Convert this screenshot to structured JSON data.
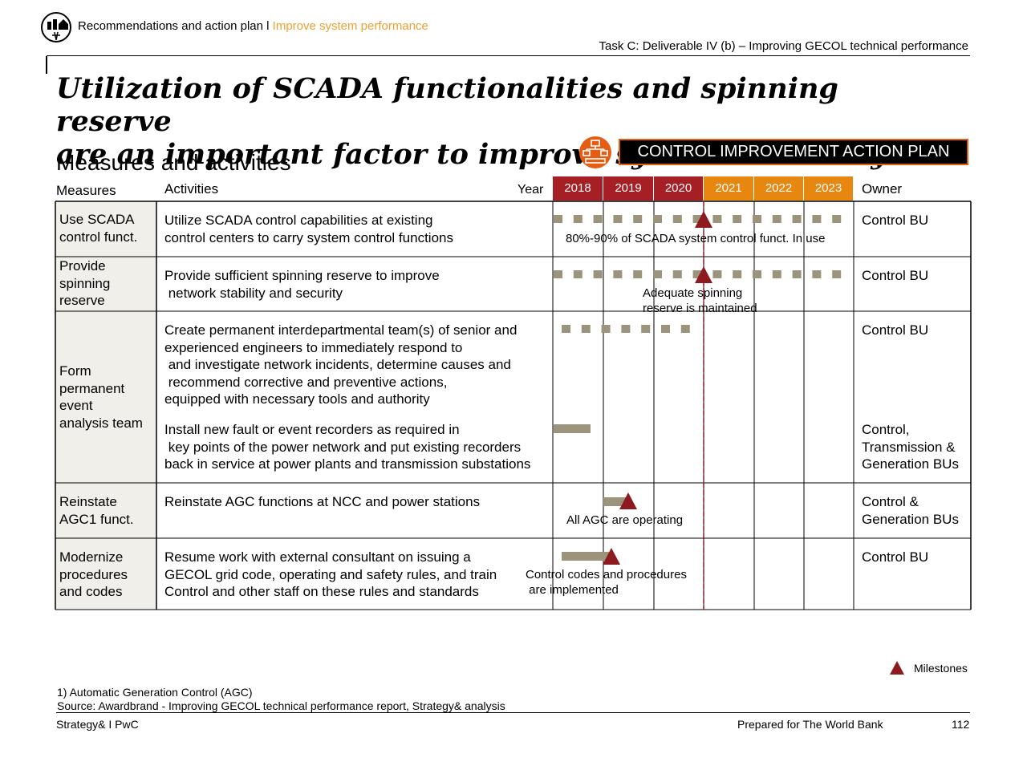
{
  "header": {
    "section": "Recommendations and action plan l ",
    "section_accent": "Improve system performance",
    "task": "Task C: Deliverable IV (b) – Improving GECOL technical performance"
  },
  "title": {
    "line1": "Utilization of SCADA functionalities and spinning reserve",
    "line2": "are an important factor to improve system reliability"
  },
  "subtitle": "Measures and activities",
  "plan_box": "CONTROL IMPROVEMENT ACTION PLAN",
  "table": {
    "col_measures": "Measures",
    "col_activities": "Activities",
    "col_year": "Year",
    "col_owner": "Owner",
    "years": [
      "2018",
      "2019",
      "2020",
      "2021",
      "2022",
      "2023"
    ],
    "rows": [
      {
        "measure": [
          "Use SCADA",
          "control funct."
        ],
        "activities": [
          [
            "Utilize SCADA control capabilities at existing",
            "control centers to carry system control functions"
          ]
        ],
        "owner": [
          [
            "Control BU"
          ]
        ],
        "note": [
          "80%-90% of SCADA system control funct. In use"
        ]
      },
      {
        "measure": [
          "Provide",
          "spinning",
          "reserve"
        ],
        "activities": [
          [
            "Provide sufficient spinning reserve to improve",
            " network stability and security"
          ]
        ],
        "owner": [
          [
            "Control BU"
          ]
        ],
        "note": [
          "Adequate spinning",
          "reserve is maintained"
        ]
      },
      {
        "measure": [
          "Form",
          "permanent",
          "event",
          "analysis team"
        ],
        "activities": [
          [
            "Create permanent interdepartmental team(s) of senior and",
            "experienced engineers to immediately respond to",
            " and investigate network incidents, determine causes and",
            " recommend corrective and preventive actions,",
            "equipped with necessary tools and authority"
          ],
          [
            "Install new fault or event recorders as required in",
            " key points of the power network and put existing recorders",
            "back in service at power plants and transmission substations"
          ]
        ],
        "owner": [
          [
            "Control BU"
          ],
          [
            "Control,",
            "Transmission &",
            "Generation BUs"
          ]
        ]
      },
      {
        "measure": [
          "Reinstate",
          "AGC1 funct."
        ],
        "activities": [
          [
            "Reinstate AGC functions at NCC and power stations"
          ]
        ],
        "owner": [
          [
            "Control &",
            "Generation BUs"
          ]
        ],
        "note": [
          "All AGC are operating"
        ]
      },
      {
        "measure": [
          "Modernize",
          "procedures",
          "and codes"
        ],
        "activities": [
          [
            "Resume work with external consultant on issuing a",
            "GECOL grid code, operating and safety rules, and train",
            "Control and other staff on these rules and standards"
          ]
        ],
        "owner": [
          [
            "Control BU"
          ]
        ],
        "note": [
          "Control codes and procedures",
          " are implemented"
        ]
      }
    ]
  },
  "legend": {
    "milestones": "Milestones"
  },
  "footnote": "1) Automatic Generation Control (AGC)",
  "source": "Source: Awardbrand - Improving GECOL technical performance report, Strategy& analysis",
  "footer": {
    "left": "Strategy& I PwC",
    "center": "Prepared for The World Bank",
    "page": "112"
  },
  "colors": {
    "past_year": "#a51f24",
    "future_year": "#e8870f",
    "bar": "#9b937b",
    "milestone": "#8c1a1f",
    "accent_border": "#e55d13",
    "header_accent": "#f0a030"
  },
  "icons": [
    "logo-icon",
    "network-icon",
    "milestone-triangle-icon"
  ]
}
